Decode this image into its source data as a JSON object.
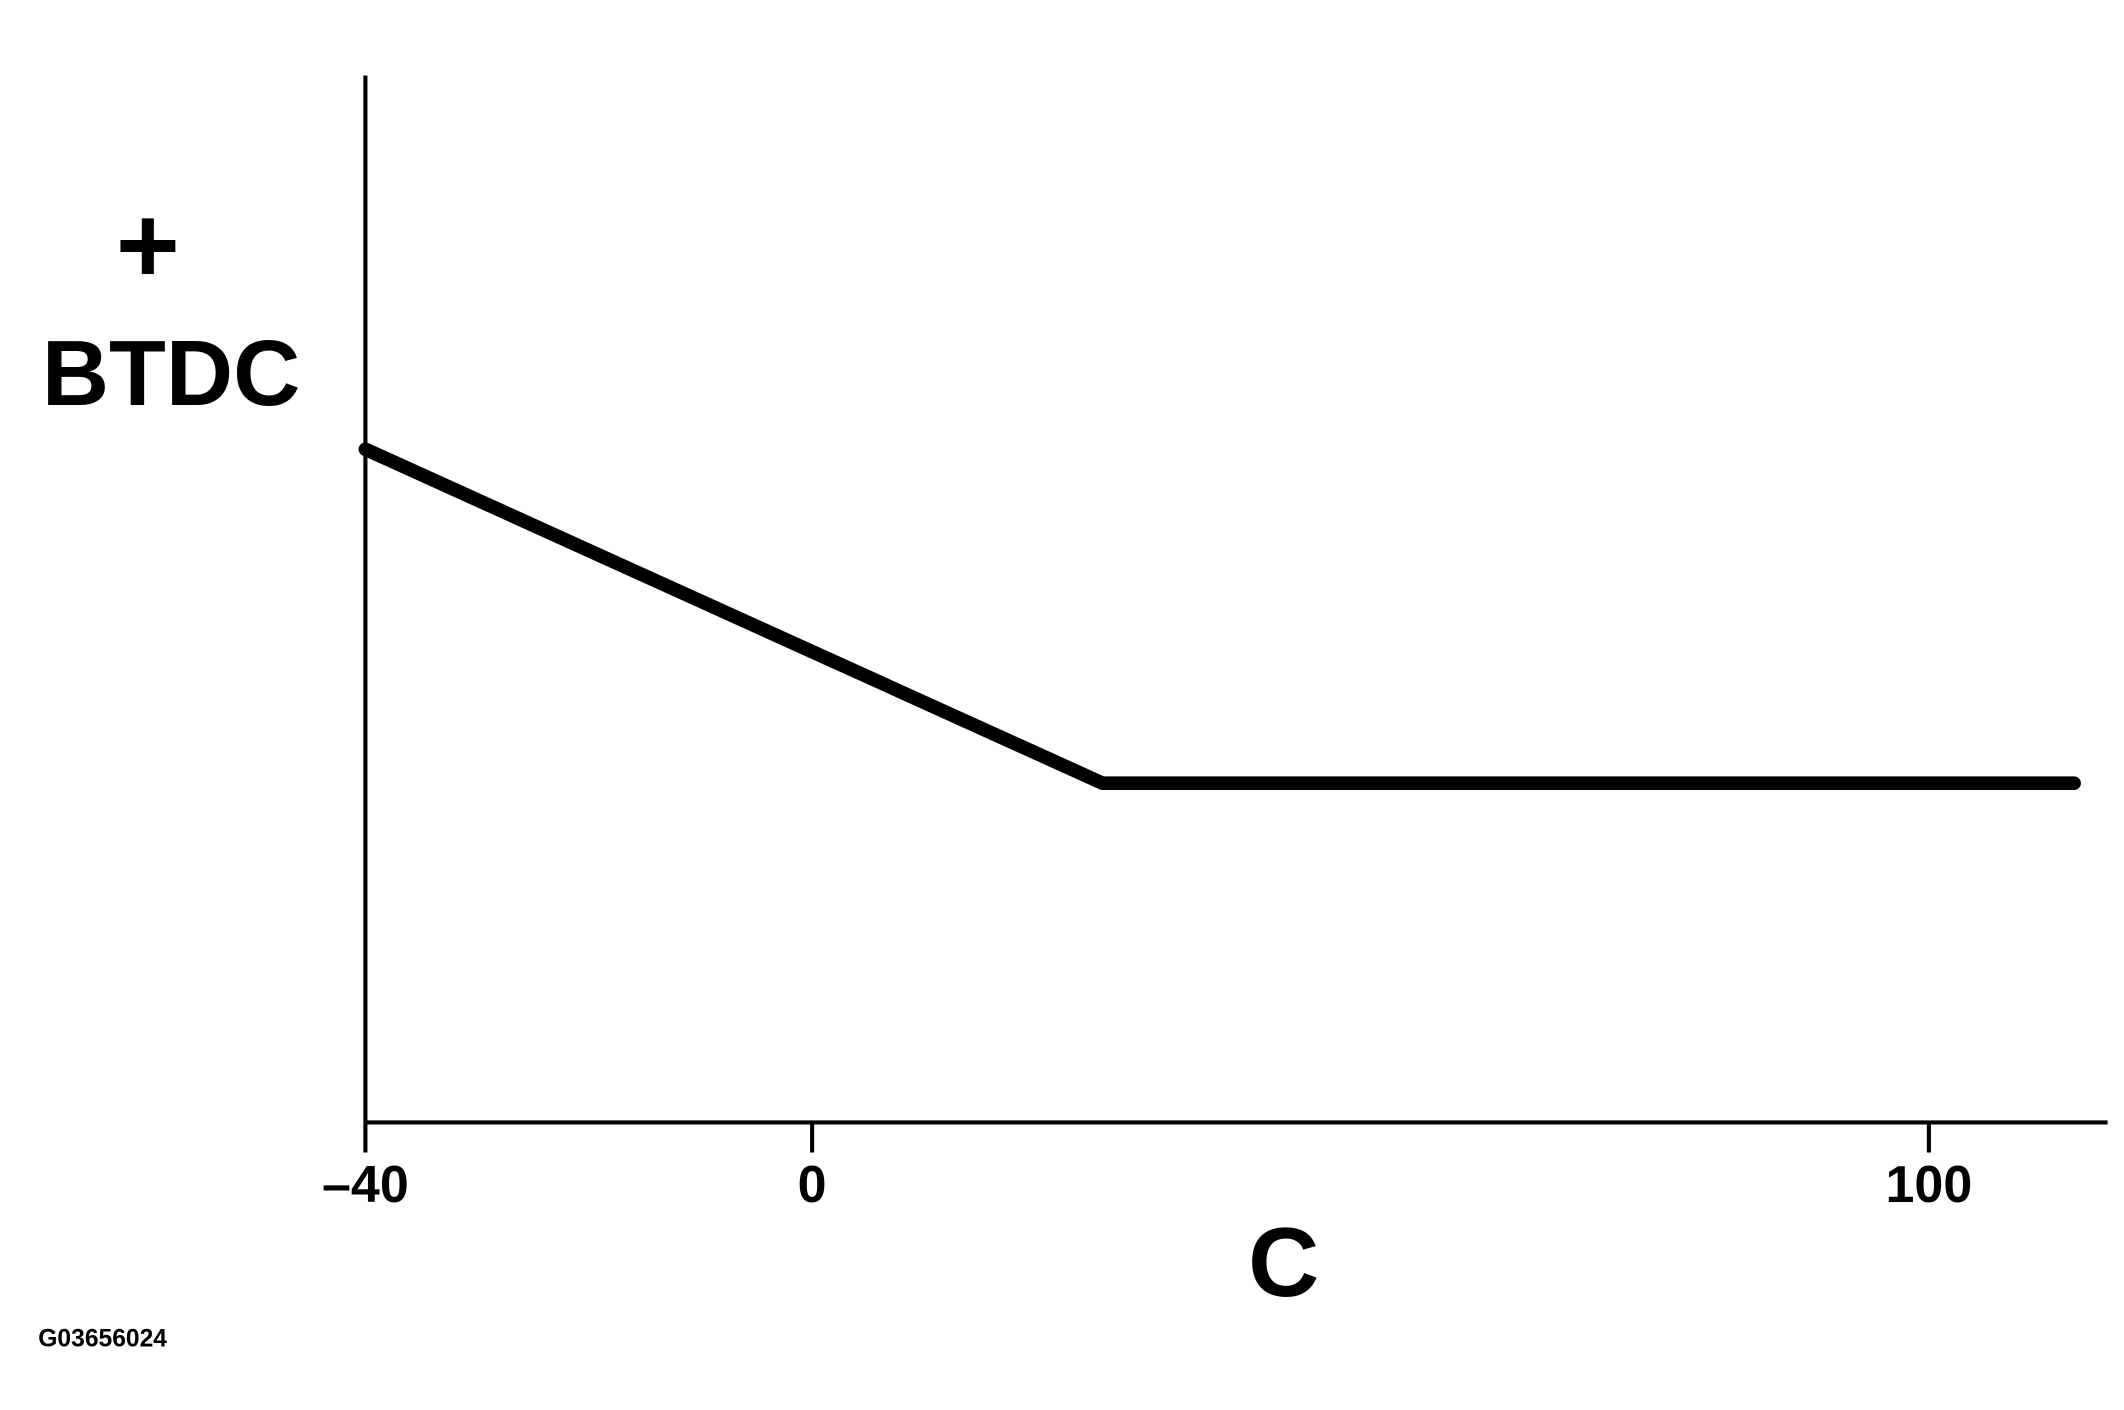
{
  "chart_data": {
    "type": "line",
    "ylabel_sign": "+",
    "ylabel": "BTDC",
    "xlabel": "C",
    "figure_id": "G03656024",
    "x": [
      -40,
      26,
      113
    ],
    "values": [
      64.3,
      32.4,
      32.4
    ],
    "color": "#000000",
    "xlim": [
      -40,
      116
    ],
    "xticks": [
      {
        "value": -40,
        "label": "–40"
      },
      0,
      100
    ],
    "ylim": [
      0,
      100
    ],
    "grid": false
  }
}
